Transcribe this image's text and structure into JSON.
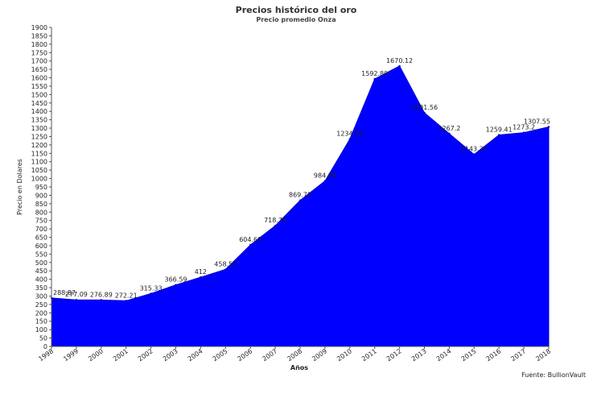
{
  "chart_data": {
    "type": "area",
    "title": "Precios histórico del oro",
    "subtitle": "Precio promedio Onza",
    "xlabel": "Años",
    "ylabel": "Precio en Dolares",
    "source": "Fuente: BullionVault",
    "color": "#0000ff",
    "ylim": [
      0,
      1900
    ],
    "ytick_step": 50,
    "grid": false,
    "legend": "none",
    "categories": [
      "1998",
      "1999",
      "2000",
      "2001",
      "2002",
      "2003",
      "2004",
      "2005",
      "2006",
      "2007",
      "2008",
      "2009",
      "2010",
      "2011",
      "2012",
      "2013",
      "2014",
      "2015",
      "2016",
      "2017",
      "2018"
    ],
    "values": [
      288.87,
      277.09,
      276.89,
      272.21,
      315.33,
      366.59,
      412,
      458.53,
      604.69,
      718.79,
      869.75,
      984.88,
      1234.82,
      1592.89,
      1670.12,
      1391.56,
      1267.2,
      1143.37,
      1259.41,
      1273.2,
      1307.55
    ],
    "data_labels": [
      "288.87",
      "277.09",
      "276.89",
      "272.21",
      "315.33",
      "366.59",
      "412",
      "458.53",
      "604.69",
      "718.79",
      "869.75",
      "984.88",
      "1234.82",
      "1592.89",
      "1670.12",
      "1391.56",
      "1267.2",
      "1143.37",
      "1259.41",
      "1273.2",
      "1307.55"
    ]
  }
}
